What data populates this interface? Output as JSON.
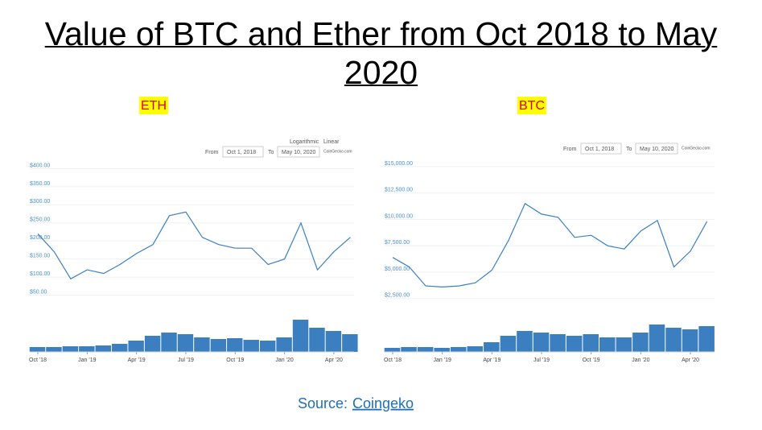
{
  "title": "Value of BTC and Ether from Oct 2018 to May 2020",
  "source_label": "Source:",
  "source": "Coingeko",
  "chart_data": [
    {
      "type": "line",
      "label": "ETH",
      "color": "#3b7fc0",
      "scale_options": [
        "Logarithmic",
        "Linear"
      ],
      "from_label": "From",
      "from": "Oct 1, 2018",
      "to_label": "To",
      "to": "May 10, 2020",
      "provider": "CoinGecko.com",
      "x": [
        "2018-10",
        "2018-11",
        "2018-12",
        "2019-01",
        "2019-02",
        "2019-03",
        "2019-04",
        "2019-05",
        "2019-06",
        "2019-07",
        "2019-08",
        "2019-09",
        "2019-10",
        "2019-11",
        "2019-12",
        "2020-01",
        "2020-02",
        "2020-03",
        "2020-04",
        "2020-05"
      ],
      "values": [
        220,
        170,
        95,
        120,
        110,
        135,
        165,
        190,
        270,
        280,
        210,
        190,
        180,
        180,
        135,
        150,
        250,
        120,
        170,
        210
      ],
      "volume": [
        6,
        6,
        7,
        7,
        8,
        10,
        14,
        20,
        24,
        22,
        18,
        16,
        17,
        15,
        14,
        18,
        40,
        30,
        26,
        22
      ],
      "ylim": [
        20,
        410
      ],
      "yticks": [
        {
          "value": 50,
          "label": "$50.00"
        },
        {
          "value": 100,
          "label": "$100.00"
        },
        {
          "value": 150,
          "label": "$150.00"
        },
        {
          "value": 200,
          "label": "$200.00"
        },
        {
          "value": 250,
          "label": "$250.00"
        },
        {
          "value": 300,
          "label": "$300.00"
        },
        {
          "value": 350,
          "label": "$350.00"
        },
        {
          "value": 400,
          "label": "$400.00"
        }
      ],
      "xticks": [
        {
          "value": "2018-10",
          "label": "Oct '18"
        },
        {
          "value": "2019-01",
          "label": "Jan '19"
        },
        {
          "value": "2019-04",
          "label": "Apr '19"
        },
        {
          "value": "2019-07",
          "label": "Jul '19"
        },
        {
          "value": "2019-10",
          "label": "Oct '19"
        },
        {
          "value": "2020-01",
          "label": "Jan '20"
        },
        {
          "value": "2020-04",
          "label": "Apr '20"
        }
      ]
    },
    {
      "type": "line",
      "label": "BTC",
      "color": "#3b7fc0",
      "from_label": "From",
      "from": "Oct 1, 2018",
      "to_label": "To",
      "to": "May 10, 2020",
      "provider": "CoinGecko.com",
      "x": [
        "2018-10",
        "2018-11",
        "2018-12",
        "2019-01",
        "2019-02",
        "2019-03",
        "2019-04",
        "2019-05",
        "2019-06",
        "2019-07",
        "2019-08",
        "2019-09",
        "2019-10",
        "2019-11",
        "2019-12",
        "2020-01",
        "2020-02",
        "2020-03",
        "2020-04",
        "2020-05"
      ],
      "values": [
        6400,
        5500,
        3700,
        3600,
        3700,
        4000,
        5200,
        8000,
        11500,
        10500,
        10200,
        8300,
        8500,
        7500,
        7200,
        8900,
        9900,
        5500,
        7000,
        9800
      ],
      "volume": [
        5,
        6,
        6,
        5,
        6,
        7,
        12,
        20,
        26,
        24,
        22,
        20,
        22,
        18,
        18,
        24,
        34,
        30,
        28,
        32
      ],
      "ylim": [
        1800,
        15300
      ],
      "yticks": [
        {
          "value": 2500,
          "label": "$2,500.00"
        },
        {
          "value": 5000,
          "label": "$5,000.00"
        },
        {
          "value": 7500,
          "label": "$7,500.00"
        },
        {
          "value": 10000,
          "label": "$10,000.00"
        },
        {
          "value": 12500,
          "label": "$12,500.00"
        },
        {
          "value": 15000,
          "label": "$15,000.00"
        }
      ],
      "xticks": [
        {
          "value": "2018-10",
          "label": "Oct '18"
        },
        {
          "value": "2019-01",
          "label": "Jan '19"
        },
        {
          "value": "2019-04",
          "label": "Apr '19"
        },
        {
          "value": "2019-07",
          "label": "Jul '19"
        },
        {
          "value": "2019-10",
          "label": "Oct '19"
        },
        {
          "value": "2020-01",
          "label": "Jan '20"
        },
        {
          "value": "2020-04",
          "label": "Apr '20"
        }
      ]
    }
  ]
}
